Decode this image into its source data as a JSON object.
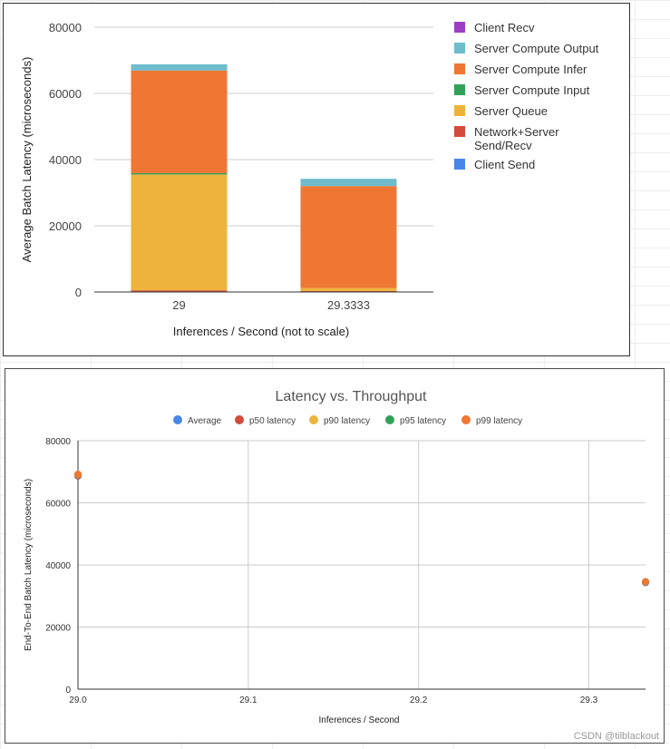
{
  "chart_data": [
    {
      "type": "bar",
      "stacked": true,
      "categories": [
        "29",
        "29.3333"
      ],
      "xlabel": "Inferences / Second (not to scale)",
      "ylabel": "Average Batch Latency (microseconds)",
      "ylim": [
        0,
        80000
      ],
      "yticks": [
        "0",
        "20000",
        "40000",
        "60000",
        "80000"
      ],
      "legend_position": "right",
      "series": [
        {
          "name": "Client Send",
          "color": "#4a86e8",
          "values": [
            0,
            0
          ]
        },
        {
          "name": "Network+Server Send/Recv",
          "color": "#d44b3c",
          "values": [
            500,
            300
          ]
        },
        {
          "name": "Server Queue",
          "color": "#edb43d",
          "values": [
            35000,
            900
          ]
        },
        {
          "name": "Server Compute Input",
          "color": "#33a05a",
          "values": [
            400,
            0
          ]
        },
        {
          "name": "Server Compute Infer",
          "color": "#ef7733",
          "values": [
            31000,
            30800
          ]
        },
        {
          "name": "Server Compute Output",
          "color": "#6ebccc",
          "values": [
            1900,
            2200
          ]
        },
        {
          "name": "Client Recv",
          "color": "#9c3fc4",
          "values": [
            0,
            0
          ]
        }
      ],
      "legend_order": [
        "Client Recv",
        "Server Compute Output",
        "Server Compute Infer",
        "Server Compute Input",
        "Server Queue",
        "Network+Server Send/Recv",
        "Client Send"
      ]
    },
    {
      "type": "scatter",
      "title": "Latency vs. Throughput",
      "xlabel": "Inferences / Second",
      "ylabel": "End-To-End Batch Latency (microseconds)",
      "xlim": [
        29.0,
        29.3333
      ],
      "ylim": [
        0,
        80000
      ],
      "xticks": [
        "29.0",
        "29.1",
        "29.2",
        "29.3"
      ],
      "yticks": [
        "0",
        "20000",
        "40000",
        "60000",
        "80000"
      ],
      "legend_position": "top",
      "grid": true,
      "series": [
        {
          "name": "Average",
          "color": "#4a86e8",
          "points": [
            [
              29.0,
              68600
            ],
            [
              29.3333,
              34300
            ]
          ]
        },
        {
          "name": "p50 latency",
          "color": "#d44b3c",
          "points": [
            [
              29.0,
              68700
            ],
            [
              29.3333,
              34400
            ]
          ]
        },
        {
          "name": "p90 latency",
          "color": "#edb43d",
          "points": [
            [
              29.0,
              69000
            ],
            [
              29.3333,
              34500
            ]
          ]
        },
        {
          "name": "p95 latency",
          "color": "#33a05a",
          "points": [
            [
              29.0,
              69100
            ],
            [
              29.3333,
              34500
            ]
          ]
        },
        {
          "name": "p99 latency",
          "color": "#ef7733",
          "points": [
            [
              29.0,
              69200
            ],
            [
              29.3333,
              34600
            ]
          ]
        }
      ]
    }
  ],
  "watermark": "CSDN @tilblackout"
}
